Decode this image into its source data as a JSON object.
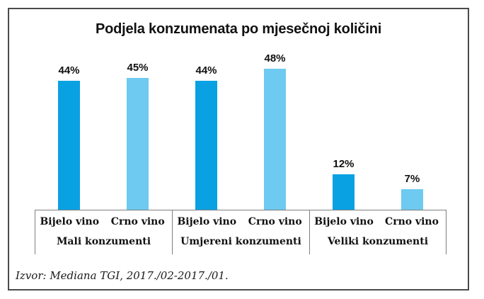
{
  "chart_data": {
    "type": "bar",
    "title": "Podjela konzumenata po mjesečnoj količini",
    "categories": [
      "Mali konzumenti",
      "Umjereni konzumenti",
      "Veliki konzumenti"
    ],
    "series": [
      {
        "name": "Bijelo vino",
        "color": "#0aa1e2",
        "values": [
          44,
          44,
          12
        ]
      },
      {
        "name": "Crno vino",
        "color": "#6ecaf0",
        "values": [
          45,
          48,
          7
        ]
      }
    ],
    "value_suffix": "%",
    "value_labels": [
      [
        "44%",
        "45%"
      ],
      [
        "44%",
        "48%"
      ],
      [
        "12%",
        "7%"
      ]
    ],
    "ylabel": "",
    "xlabel": "",
    "ylim": [
      0,
      50
    ],
    "grid": false,
    "y_axis_visible": false,
    "legend_position": "none (series named under each bar)",
    "source": "Izvor: Mediana TGI, 2017./02-2017./01."
  },
  "colors": {
    "frame_border": "#4a4a4a",
    "axis_line": "#7f7f7f",
    "background": "#ffffff",
    "text": "#111111",
    "bar_bijelo_vino": "#0aa1e2",
    "bar_crno_vino": "#6ecaf0"
  }
}
